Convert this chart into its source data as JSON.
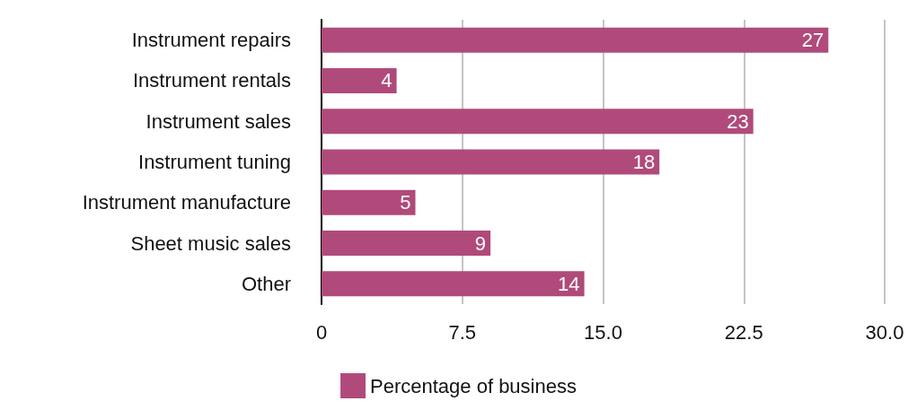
{
  "chart_data": {
    "type": "bar",
    "orientation": "horizontal",
    "categories": [
      "Instrument repairs",
      "Instrument rentals",
      "Instrument sales",
      "Instrument tuning",
      "Instrument manufacture",
      "Sheet music sales",
      "Other"
    ],
    "series": [
      {
        "name": "Percentage of business",
        "color": "#b04a7a",
        "values": [
          27,
          4,
          23,
          18,
          5,
          9,
          14
        ]
      }
    ],
    "xlim": [
      0,
      30
    ],
    "xticks": [
      0,
      7.5,
      {
        "value": 15,
        "label": "15.0"
      },
      {
        "value": 22.5,
        "label": "22.5"
      },
      {
        "value": 30,
        "label": "30.0"
      }
    ],
    "grid": "x",
    "legend": "bottom",
    "data_labels": true
  }
}
